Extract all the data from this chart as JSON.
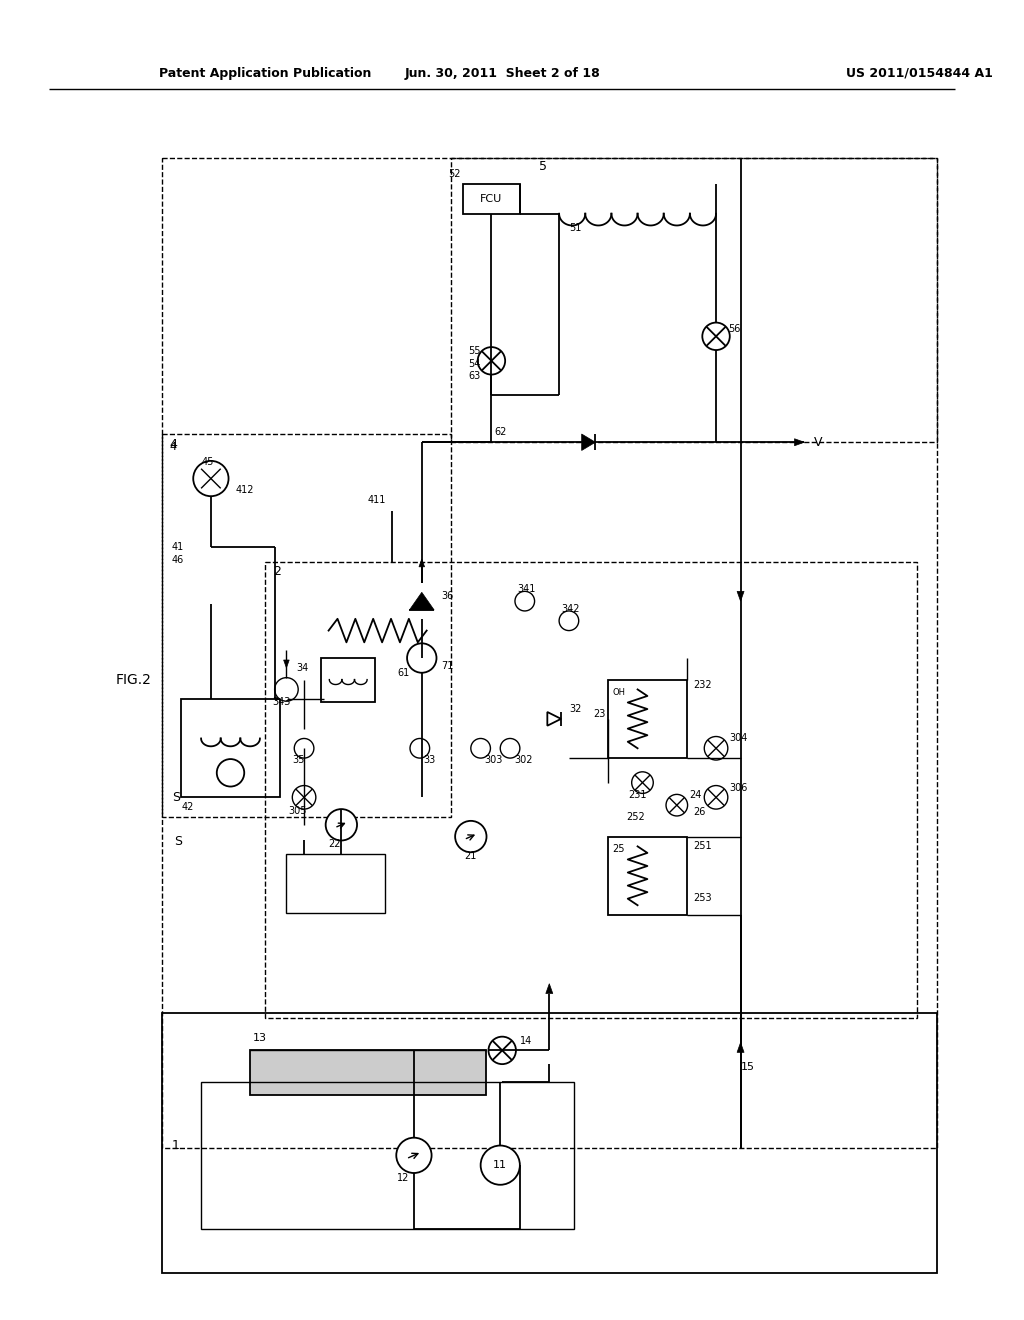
{
  "title_left": "Patent Application Publication",
  "title_center": "Jun. 30, 2011  Sheet 2 of 18",
  "title_right": "US 2011/0154844 A1",
  "fig_label": "FIG.2",
  "background_color": "#ffffff",
  "line_color": "#000000",
  "fig_width": 10.24,
  "fig_height": 13.2,
  "dpi": 100
}
